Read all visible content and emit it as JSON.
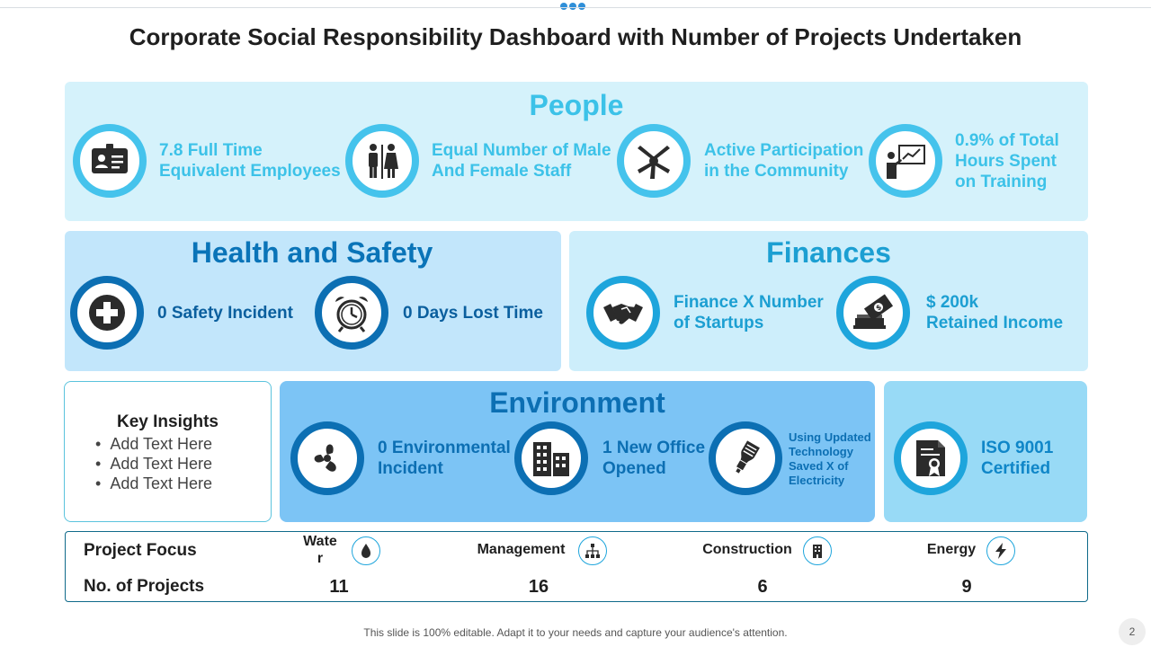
{
  "title": "Corporate Social Responsibility Dashboard with Number of Projects Undertaken",
  "people": {
    "title": "People",
    "items": [
      {
        "line1": "7.8 Full Time",
        "line2": "Equivalent Employees",
        "icon": "id-card-icon"
      },
      {
        "line1": "Equal Number of Male",
        "line2": "And Female Staff",
        "icon": "male-female-icon"
      },
      {
        "line1": "Active Participation",
        "line2": "in the Community",
        "icon": "joined-hands-icon"
      },
      {
        "line1": "0.9% of Total",
        "line2": "Hours Spent",
        "line3": "on Training",
        "icon": "presentation-icon"
      }
    ]
  },
  "health": {
    "title": "Health and Safety",
    "items": [
      {
        "label": "0 Safety Incident",
        "icon": "medical-cross-icon"
      },
      {
        "label": "0 Days Lost Time",
        "icon": "alarm-clock-icon"
      }
    ]
  },
  "finances": {
    "title": "Finances",
    "items": [
      {
        "line1": "Finance X Number",
        "line2": "of Startups",
        "icon": "handshake-icon"
      },
      {
        "line1": "$ 200k",
        "line2": "Retained Income",
        "icon": "money-icon"
      }
    ]
  },
  "insights": {
    "title": "Key Insights",
    "bullets": [
      "Add Text Here",
      "Add Text Here",
      "Add Text Here"
    ]
  },
  "environment": {
    "title": "Environment",
    "items": [
      {
        "line1": "0 Environmental",
        "line2": "Incident",
        "icon": "fan-icon"
      },
      {
        "line1": "1 New Office",
        "line2": "Opened",
        "icon": "office-building-icon"
      },
      {
        "line1": "Using Updated",
        "line2": "Technology",
        "line3": "Saved X of",
        "line4": "Electricity",
        "icon": "light-bulb-icon"
      }
    ]
  },
  "iso": {
    "line1": "ISO 9001",
    "line2": "Certified",
    "icon": "certificate-icon"
  },
  "project_focus": {
    "row1_label": "Project Focus",
    "row2_label": "No. of Projects",
    "categories": [
      {
        "name_line1": "Wate",
        "name_line2": "r",
        "count": "11",
        "icon": "water-drop-icon"
      },
      {
        "name": "Management",
        "count": "16",
        "icon": "hierarchy-icon"
      },
      {
        "name": "Construction",
        "count": "6",
        "icon": "building-icon"
      },
      {
        "name": "Energy",
        "count": "9",
        "icon": "lightning-icon"
      }
    ]
  },
  "footer": "This slide is 100% editable. Adapt it to your needs and capture your audience's attention.",
  "page_number": "2",
  "colors": {
    "people": "#3cc2e8",
    "health": "#0a74b8",
    "finance": "#1c9fd2",
    "environment": "#0c6fb3"
  }
}
